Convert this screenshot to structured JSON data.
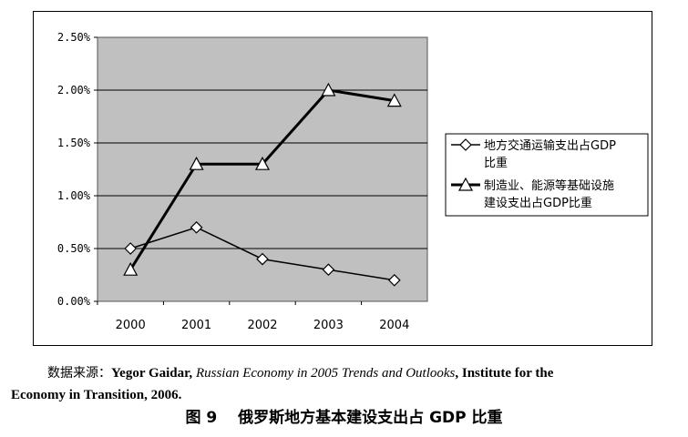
{
  "chart_data": {
    "type": "line",
    "categories": [
      "2000",
      "2001",
      "2002",
      "2003",
      "2004"
    ],
    "y_ticks": [
      "0.00%",
      "0.50%",
      "1.00%",
      "1.50%",
      "2.00%",
      "2.50%"
    ],
    "ylim": [
      0,
      0.025
    ],
    "grid": true,
    "legend_position": "right",
    "plot_background": "#c0c0c0",
    "series": [
      {
        "name_line1": "地方交通运输支出占GDP",
        "name_line2": "比重",
        "marker": "diamond",
        "line_width": 1.5,
        "values": [
          0.005,
          0.007,
          0.004,
          0.003,
          0.002
        ]
      },
      {
        "name_line1": "制造业、能源等基础设施",
        "name_line2": "建设支出占GDP比重",
        "marker": "triangle",
        "line_width": 3,
        "values": [
          0.003,
          0.013,
          0.013,
          0.02,
          0.019
        ]
      }
    ]
  },
  "source": {
    "label": "数据来源：",
    "author": "Yegor Gaidar, ",
    "title": "Russian Economy in 2005 Trends and Outlooks",
    "rest_line1": ", Institute for the",
    "rest_line2": "Economy in Transition, 2006."
  },
  "caption": "图 9　 俄罗斯地方基本建设支出占 GDP 比重"
}
